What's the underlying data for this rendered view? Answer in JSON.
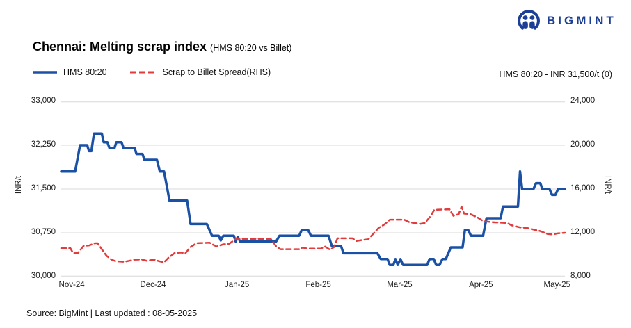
{
  "logo": {
    "brand": "BIGMINT"
  },
  "header": {
    "title": "Chennai: Melting scrap index",
    "subtitle": "(HMS 80:20 vs Billet)",
    "annotation": "HMS 80:20 - INR 31,500/t (0)"
  },
  "legend": {
    "items": [
      {
        "label": "HMS 80:20"
      },
      {
        "label": "Scrap to Billet Spread(RHS)"
      }
    ]
  },
  "footer": {
    "source": "Source: BigMint | Last updated : 08-05-2025"
  },
  "chart_data": {
    "type": "line",
    "title": "Chennai: Melting scrap index (HMS 80:20 vs Billet)",
    "grid_color": "#d8d8d8",
    "x_axis": {
      "labels": [
        "Nov-24",
        "Dec-24",
        "Jan-25",
        "Feb-25",
        "Mar-25",
        "Apr-25",
        "May-25"
      ],
      "tick_days": [
        4,
        35,
        67,
        98,
        129,
        160,
        189
      ],
      "day_max": 192
    },
    "y_left": {
      "label": "INR/t",
      "min": 30000,
      "max": 33000,
      "tick_labels": [
        "33,000",
        "32,250",
        "31,500",
        "30,750",
        "30,000"
      ]
    },
    "y_right": {
      "label": "INR/t",
      "min": 8000,
      "max": 24000,
      "tick_labels": [
        "24,000",
        "20,000",
        "16,000",
        "12,000",
        "8,000"
      ]
    },
    "series": [
      {
        "name": "HMS 80:20",
        "axis": "left",
        "color": "#1a51a5",
        "dash": "solid",
        "width": 3.5,
        "points": [
          [
            0,
            31800
          ],
          [
            5.3,
            31800
          ],
          [
            7.2,
            32250
          ],
          [
            9.9,
            32250
          ],
          [
            10.6,
            32150
          ],
          [
            11.5,
            32150
          ],
          [
            12.5,
            32450
          ],
          [
            15.5,
            32450
          ],
          [
            16.2,
            32300
          ],
          [
            17.6,
            32300
          ],
          [
            18.4,
            32200
          ],
          [
            20.3,
            32200
          ],
          [
            21,
            32300
          ],
          [
            23,
            32300
          ],
          [
            23.8,
            32200
          ],
          [
            28,
            32200
          ],
          [
            28.7,
            32100
          ],
          [
            31,
            32100
          ],
          [
            31.7,
            32000
          ],
          [
            36.5,
            32000
          ],
          [
            37.6,
            31800
          ],
          [
            39.2,
            31800
          ],
          [
            41.3,
            31300
          ],
          [
            48,
            31300
          ],
          [
            49.3,
            30900
          ],
          [
            55.5,
            30900
          ],
          [
            57.5,
            30700
          ],
          [
            60,
            30700
          ],
          [
            60.8,
            30620
          ],
          [
            61.8,
            30700
          ],
          [
            65.8,
            30700
          ],
          [
            66.5,
            30600
          ],
          [
            67.3,
            30680
          ],
          [
            68.2,
            30600
          ],
          [
            81.9,
            30600
          ],
          [
            83.2,
            30700
          ],
          [
            90.7,
            30700
          ],
          [
            91.7,
            30800
          ],
          [
            94.1,
            30800
          ],
          [
            95.2,
            30700
          ],
          [
            101.9,
            30700
          ],
          [
            103.2,
            30520
          ],
          [
            106.7,
            30520
          ],
          [
            107.6,
            30400
          ],
          [
            120.5,
            30400
          ],
          [
            121.8,
            30300
          ],
          [
            124.4,
            30300
          ],
          [
            125.2,
            30200
          ],
          [
            126.6,
            30200
          ],
          [
            127.4,
            30300
          ],
          [
            128.3,
            30200
          ],
          [
            129.3,
            30300
          ],
          [
            130.3,
            30200
          ],
          [
            139.5,
            30200
          ],
          [
            140.4,
            30300
          ],
          [
            142,
            30300
          ],
          [
            142.9,
            30200
          ],
          [
            144.2,
            30200
          ],
          [
            145.3,
            30300
          ],
          [
            146.6,
            30300
          ],
          [
            148.5,
            30500
          ],
          [
            153,
            30500
          ],
          [
            153.9,
            30800
          ],
          [
            155.1,
            30800
          ],
          [
            156.2,
            30700
          ],
          [
            160.8,
            30700
          ],
          [
            162.1,
            31000
          ],
          [
            167.5,
            31000
          ],
          [
            168.4,
            31200
          ],
          [
            174.1,
            31200
          ],
          [
            174.9,
            31800
          ],
          [
            175.7,
            31500
          ],
          [
            180,
            31500
          ],
          [
            181,
            31600
          ],
          [
            182.6,
            31600
          ],
          [
            183.4,
            31500
          ],
          [
            186.1,
            31500
          ],
          [
            187.1,
            31400
          ],
          [
            188.4,
            31400
          ],
          [
            189.4,
            31500
          ],
          [
            192,
            31500
          ]
        ]
      },
      {
        "name": "Scrap to Billet Spread(RHS)",
        "axis": "right",
        "color": "#e23b3c",
        "dash": "dashed",
        "width": 2.5,
        "points": [
          [
            0,
            10600
          ],
          [
            3.5,
            10600
          ],
          [
            4.5,
            10150
          ],
          [
            6.4,
            10150
          ],
          [
            8.5,
            10800
          ],
          [
            10.7,
            10850
          ],
          [
            12.8,
            11050
          ],
          [
            13.9,
            11050
          ],
          [
            15.5,
            10500
          ],
          [
            17.3,
            9900
          ],
          [
            19.2,
            9550
          ],
          [
            20.8,
            9400
          ],
          [
            24,
            9350
          ],
          [
            26,
            9450
          ],
          [
            28,
            9550
          ],
          [
            30.7,
            9560
          ],
          [
            32.5,
            9450
          ],
          [
            35.5,
            9550
          ],
          [
            37.3,
            9400
          ],
          [
            39.2,
            9300
          ],
          [
            40.8,
            9700
          ],
          [
            43.2,
            10150
          ],
          [
            45.9,
            10200
          ],
          [
            47.2,
            10100
          ],
          [
            49.3,
            10700
          ],
          [
            51.5,
            11050
          ],
          [
            56.5,
            11100
          ],
          [
            59.2,
            10750
          ],
          [
            61.9,
            10950
          ],
          [
            64,
            11000
          ],
          [
            66.7,
            11450
          ],
          [
            78.7,
            11450
          ],
          [
            80,
            11400
          ],
          [
            82,
            10750
          ],
          [
            83.5,
            10500
          ],
          [
            90.7,
            10500
          ],
          [
            92,
            10650
          ],
          [
            94,
            10550
          ],
          [
            99,
            10550
          ],
          [
            100.5,
            10750
          ],
          [
            102.5,
            10450
          ],
          [
            104,
            10700
          ],
          [
            105.3,
            11500
          ],
          [
            111,
            11500
          ],
          [
            112.5,
            11250
          ],
          [
            115,
            11350
          ],
          [
            117,
            11400
          ],
          [
            121,
            12450
          ],
          [
            123.2,
            12760
          ],
          [
            125.3,
            13200
          ],
          [
            130.7,
            13200
          ],
          [
            132.8,
            12950
          ],
          [
            137,
            12820
          ],
          [
            138.7,
            12900
          ],
          [
            141,
            13600
          ],
          [
            142.2,
            14100
          ],
          [
            148,
            14150
          ],
          [
            149.5,
            13550
          ],
          [
            151.5,
            13700
          ],
          [
            152.6,
            14400
          ],
          [
            153.6,
            13750
          ],
          [
            156,
            13700
          ],
          [
            158.7,
            13400
          ],
          [
            161,
            13050
          ],
          [
            165.3,
            12950
          ],
          [
            170,
            12900
          ],
          [
            171.5,
            12700
          ],
          [
            174.7,
            12500
          ],
          [
            177.3,
            12450
          ],
          [
            180,
            12300
          ],
          [
            182.7,
            12150
          ],
          [
            185.3,
            11900
          ],
          [
            187.5,
            11850
          ],
          [
            189.3,
            11950
          ],
          [
            192,
            12000
          ]
        ]
      }
    ]
  }
}
